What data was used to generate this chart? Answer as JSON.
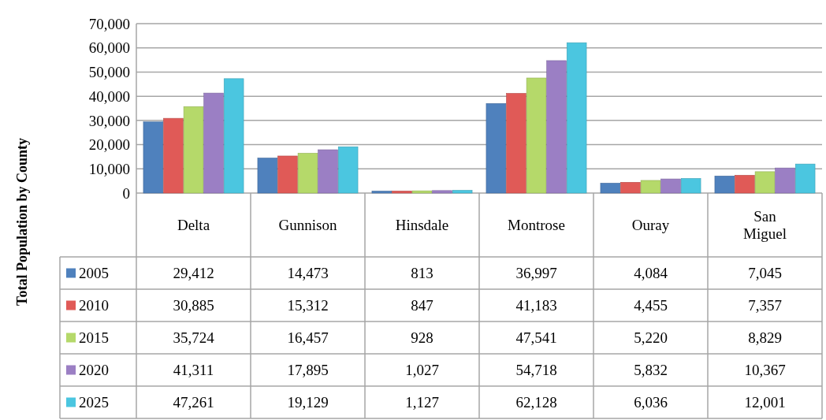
{
  "chart_data": {
    "type": "bar",
    "ylabel": "Total Population by County",
    "categories": [
      "Delta",
      "Gunnison",
      "Hinsdale",
      "Montrose",
      "Ouray",
      "San Miguel"
    ],
    "series": [
      {
        "name": "2005",
        "color": "#4f81bd",
        "values": [
          29412,
          14473,
          813,
          36997,
          4084,
          7045
        ],
        "value_labels": [
          "29,412",
          "14,473",
          "813",
          "36,997",
          "4,084",
          "7,045"
        ]
      },
      {
        "name": "2010",
        "color": "#e05a57",
        "values": [
          30885,
          15312,
          847,
          41183,
          4455,
          7357
        ],
        "value_labels": [
          "30,885",
          "15,312",
          "847",
          "41,183",
          "4,455",
          "7,357"
        ]
      },
      {
        "name": "2015",
        "color": "#b5d96a",
        "values": [
          35724,
          16457,
          928,
          47541,
          5220,
          8829
        ],
        "value_labels": [
          "35,724",
          "16,457",
          "928",
          "47,541",
          "5,220",
          "8,829"
        ]
      },
      {
        "name": "2020",
        "color": "#9b7fc4",
        "values": [
          41311,
          17895,
          1027,
          54718,
          5832,
          10367
        ],
        "value_labels": [
          "41,311",
          "17,895",
          "1,027",
          "54,718",
          "5,832",
          "10,367"
        ]
      },
      {
        "name": "2025",
        "color": "#4bc6e0",
        "values": [
          47261,
          19129,
          1127,
          62128,
          6036,
          12001
        ],
        "value_labels": [
          "47,261",
          "19,129",
          "1,127",
          "62,128",
          "6,036",
          "12,001"
        ]
      }
    ],
    "ylim": [
      0,
      70000
    ],
    "yticks": [
      {
        "value": 0,
        "label": "0"
      },
      {
        "value": 10000,
        "label": "10,000"
      },
      {
        "value": 20000,
        "label": "20,000"
      },
      {
        "value": 30000,
        "label": "30,000"
      },
      {
        "value": 40000,
        "label": "40,000"
      },
      {
        "value": 50000,
        "label": "50,000"
      },
      {
        "value": 60000,
        "label": "60,000"
      },
      {
        "value": 70000,
        "label": "70,000"
      }
    ],
    "grid": "y",
    "legend": "bottom left"
  }
}
